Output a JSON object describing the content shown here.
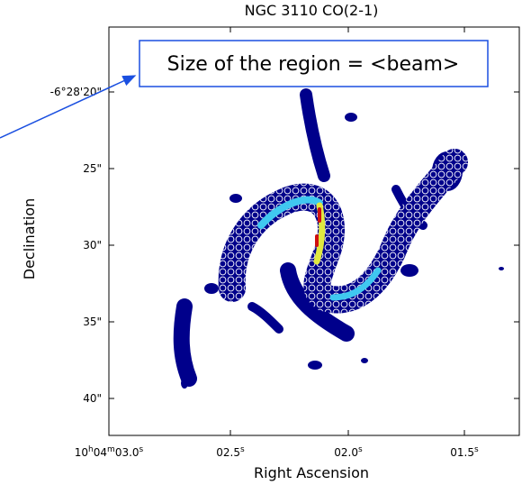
{
  "title": "NGC 3110 CO(2-1)",
  "annotation": "Size of the region  = <beam>",
  "x_axis": {
    "label": "Right Ascension",
    "ticks": [
      [
        {
          "text": "10"
        },
        {
          "sup": "h"
        },
        {
          "text": "04"
        },
        {
          "sup": "m"
        },
        {
          "text": "03.0"
        },
        {
          "sup": "s"
        }
      ],
      [
        {
          "text": "02.5"
        },
        {
          "sup": "s"
        }
      ],
      [
        {
          "text": "02.0"
        },
        {
          "sup": "s"
        }
      ],
      [
        {
          "text": "01.5"
        },
        {
          "sup": "s"
        }
      ]
    ]
  },
  "y_axis": {
    "label": "Declination",
    "ticks": [
      "-6°28'20\"",
      "25\"",
      "30\"",
      "35\"",
      "40\""
    ]
  }
}
